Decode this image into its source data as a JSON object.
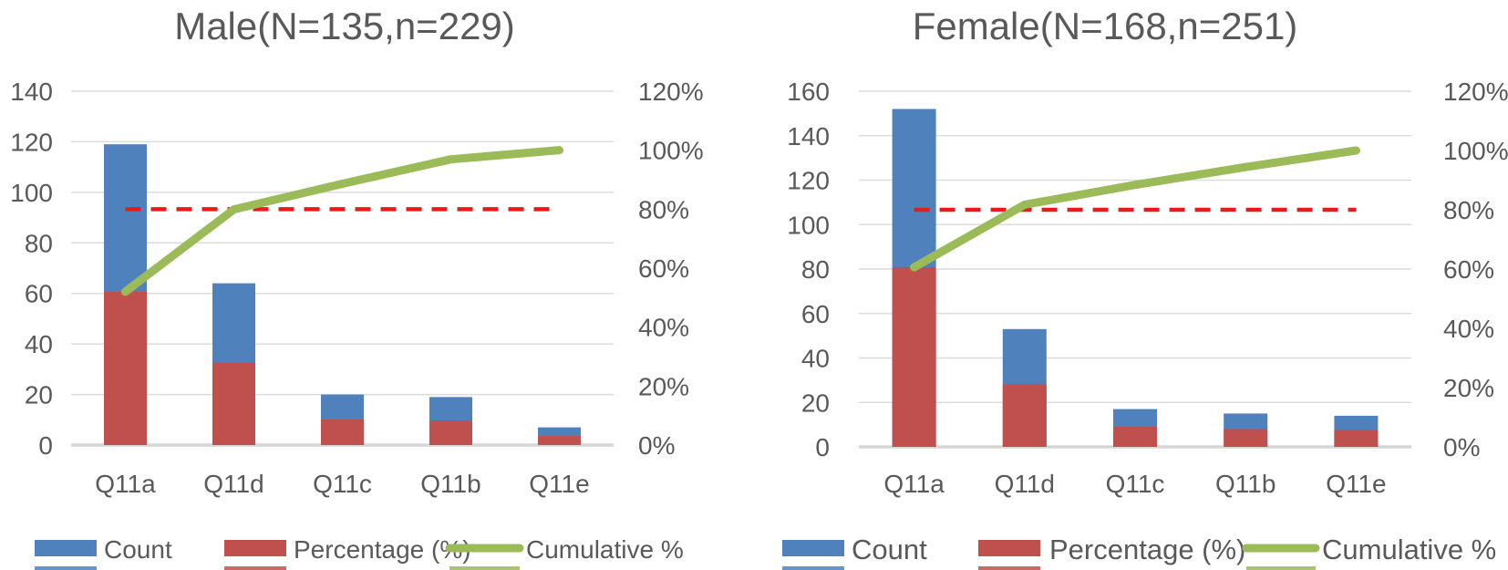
{
  "colors": {
    "count_bar": "#4F81BD",
    "percentage_bar": "#C0504D",
    "cumulative_line": "#9BBB59",
    "threshold_line": "#EA1A1A",
    "gridline": "#DCDCDC",
    "axis_line": "#D6D6D6",
    "text": "#595959"
  },
  "legend_labels": {
    "count": "Count",
    "percentage": "Percentage (%)",
    "cumulative": "Cumulative %"
  },
  "chart_data": [
    {
      "id": "male",
      "type": "combo",
      "title": "Male(N=135,n=229)",
      "categories": [
        "Q11a",
        "Q11d",
        "Q11c",
        "Q11b",
        "Q11e"
      ],
      "series": [
        {
          "name": "Count",
          "type": "bar",
          "axis": "left",
          "values": [
            119,
            64,
            20,
            19,
            7
          ]
        },
        {
          "name": "Percentage (%)",
          "type": "bar",
          "axis": "right",
          "values": [
            52.0,
            27.9,
            8.7,
            8.3,
            3.1
          ]
        },
        {
          "name": "Cumulative %",
          "type": "line",
          "axis": "right",
          "values": [
            52.0,
            79.9,
            88.6,
            96.9,
            100.0
          ]
        }
      ],
      "threshold_pct": 80,
      "left_axis": {
        "min": 0,
        "max": 140,
        "step": 20,
        "tick_labels": [
          "0",
          "20",
          "40",
          "60",
          "80",
          "100",
          "120",
          "140"
        ]
      },
      "right_axis": {
        "min": 0,
        "max": 120,
        "step": 20,
        "tick_labels": [
          "0%",
          "20%",
          "40%",
          "60%",
          "80%",
          "100%",
          "120%"
        ]
      },
      "grid": true,
      "legend_position": "bottom"
    },
    {
      "id": "female",
      "type": "combo",
      "title": "Female(N=168,n=251)",
      "categories": [
        "Q11a",
        "Q11d",
        "Q11c",
        "Q11b",
        "Q11e"
      ],
      "series": [
        {
          "name": "Count",
          "type": "bar",
          "axis": "left",
          "values": [
            152,
            53,
            17,
            15,
            14
          ]
        },
        {
          "name": "Percentage (%)",
          "type": "bar",
          "axis": "right",
          "values": [
            60.6,
            21.1,
            6.8,
            6.0,
            5.6
          ]
        },
        {
          "name": "Cumulative %",
          "type": "line",
          "axis": "right",
          "values": [
            60.6,
            81.7,
            88.4,
            94.4,
            100.0
          ]
        }
      ],
      "threshold_pct": 80,
      "left_axis": {
        "min": 0,
        "max": 160,
        "step": 20,
        "tick_labels": [
          "0",
          "20",
          "40",
          "60",
          "80",
          "100",
          "120",
          "140",
          "160"
        ]
      },
      "right_axis": {
        "min": 0,
        "max": 120,
        "step": 20,
        "tick_labels": [
          "0%",
          "20%",
          "40%",
          "60%",
          "80%",
          "100%",
          "120%"
        ]
      },
      "grid": true,
      "legend_position": "bottom"
    }
  ]
}
